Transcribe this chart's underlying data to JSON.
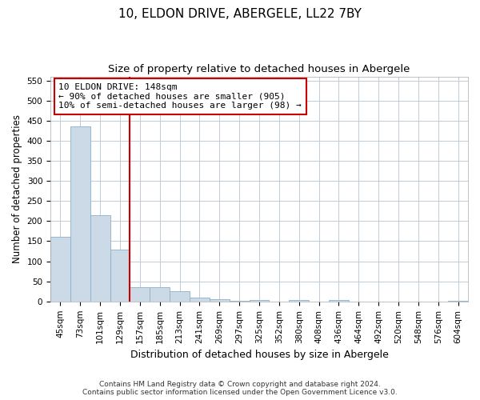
{
  "title": "10, ELDON DRIVE, ABERGELE, LL22 7BY",
  "subtitle": "Size of property relative to detached houses in Abergele",
  "xlabel": "Distribution of detached houses by size in Abergele",
  "ylabel": "Number of detached properties",
  "footnote": "Contains HM Land Registry data © Crown copyright and database right 2024.\nContains public sector information licensed under the Open Government Licence v3.0.",
  "categories": [
    "45sqm",
    "73sqm",
    "101sqm",
    "129sqm",
    "157sqm",
    "185sqm",
    "213sqm",
    "241sqm",
    "269sqm",
    "297sqm",
    "325sqm",
    "352sqm",
    "380sqm",
    "408sqm",
    "436sqm",
    "464sqm",
    "492sqm",
    "520sqm",
    "548sqm",
    "576sqm",
    "604sqm"
  ],
  "bar_values": [
    160,
    435,
    215,
    130,
    35,
    35,
    25,
    10,
    5,
    2,
    3,
    0,
    4,
    0,
    3,
    0,
    0,
    0,
    0,
    0,
    2
  ],
  "bar_color": "#ccdae8",
  "bar_edge_color": "#8ab0cc",
  "vline_position": 3.5,
  "vline_color": "#cc0000",
  "annotation_text": "10 ELDON DRIVE: 148sqm\n← 90% of detached houses are smaller (905)\n10% of semi-detached houses are larger (98) →",
  "annotation_box_color": "#ffffff",
  "annotation_box_edge_color": "#cc0000",
  "ylim": [
    0,
    560
  ],
  "yticks": [
    0,
    50,
    100,
    150,
    200,
    250,
    300,
    350,
    400,
    450,
    500,
    550
  ],
  "background_color": "#ffffff",
  "grid_color": "#c0ccd8",
  "title_fontsize": 11,
  "subtitle_fontsize": 9.5,
  "ylabel_fontsize": 8.5,
  "xlabel_fontsize": 9,
  "tick_fontsize": 7.5,
  "annotation_fontsize": 8,
  "footnote_fontsize": 6.5
}
